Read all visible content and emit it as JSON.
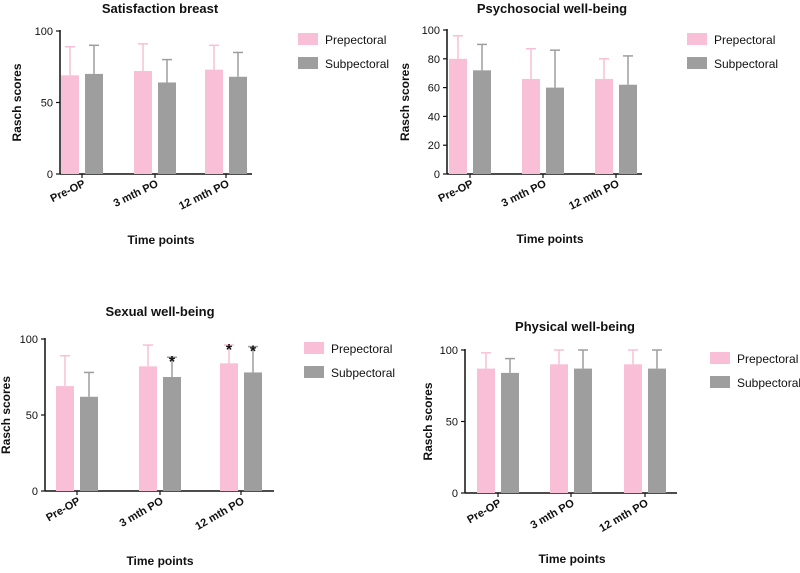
{
  "chart_data": [
    {
      "type": "bar",
      "title": "Satisfaction breast",
      "xlabel": "Time points",
      "ylabel": "Rasch scores",
      "ylim": [
        0,
        100
      ],
      "yticks": [
        "0",
        "50",
        "100"
      ],
      "categories": [
        "Pre-OP",
        "3 mth PO",
        "12 mth PO"
      ],
      "series": [
        {
          "name": "Prepectoral",
          "color": "#f8bfd6",
          "values": [
            69,
            72,
            73
          ],
          "error": [
            20,
            19,
            17
          ]
        },
        {
          "name": "Subpectoral",
          "color": "#9e9e9e",
          "values": [
            70,
            64,
            68
          ],
          "error": [
            20,
            16,
            17
          ]
        }
      ],
      "significance": [
        "",
        "",
        ""
      ],
      "legend": "top-right"
    },
    {
      "type": "bar",
      "title": "Psychosocial well-being",
      "xlabel": "Time points",
      "ylabel": "Rasch scores",
      "ylim": [
        0,
        100
      ],
      "yticks": [
        "0",
        "20",
        "40",
        "60",
        "80",
        "100"
      ],
      "categories": [
        "Pre-OP",
        "3 mth PO",
        "12 mth PO"
      ],
      "series": [
        {
          "name": "Prepectoral",
          "color": "#f8bfd6",
          "values": [
            80,
            66,
            66
          ],
          "error": [
            16,
            21,
            14
          ]
        },
        {
          "name": "Subpectoral",
          "color": "#9e9e9e",
          "values": [
            72,
            60,
            62
          ],
          "error": [
            18,
            26,
            20
          ]
        }
      ],
      "significance": [
        "",
        "",
        ""
      ],
      "legend": "top-right"
    },
    {
      "type": "bar",
      "title": "Sexual well-being",
      "xlabel": "Time points",
      "ylabel": "Rasch scores",
      "ylim": [
        0,
        100
      ],
      "yticks": [
        "0",
        "50",
        "100"
      ],
      "categories": [
        "Pre-OP",
        "3 mth PO",
        "12 mth PO"
      ],
      "series": [
        {
          "name": "Prepectoral",
          "color": "#f8bfd6",
          "values": [
            69,
            82,
            84
          ],
          "error": [
            20,
            14,
            12
          ]
        },
        {
          "name": "Subpectoral",
          "color": "#9e9e9e",
          "values": [
            62,
            75,
            78
          ],
          "error": [
            16,
            13,
            17
          ]
        }
      ],
      "significance": [
        {
          "category": 1,
          "series": 1,
          "label": "*"
        },
        {
          "category": 2,
          "series": 0,
          "label": "*"
        },
        {
          "category": 2,
          "series": 1,
          "label": "*"
        }
      ],
      "legend": "top-right"
    },
    {
      "type": "bar",
      "title": "Physical well-being",
      "xlabel": "Time points",
      "ylabel": "Rasch scores",
      "ylim": [
        0,
        100
      ],
      "yticks": [
        "0",
        "50",
        "100"
      ],
      "categories": [
        "Pre-OP",
        "3 mth PO",
        "12 mth PO"
      ],
      "series": [
        {
          "name": "Prepectoral",
          "color": "#f8bfd6",
          "values": [
            87,
            90,
            90
          ],
          "error": [
            11,
            10,
            10
          ]
        },
        {
          "name": "Subpectoral",
          "color": "#9e9e9e",
          "values": [
            84,
            87,
            87
          ],
          "error": [
            10,
            13,
            13
          ]
        }
      ],
      "significance": [
        "",
        "",
        ""
      ],
      "legend": "top-right"
    }
  ]
}
